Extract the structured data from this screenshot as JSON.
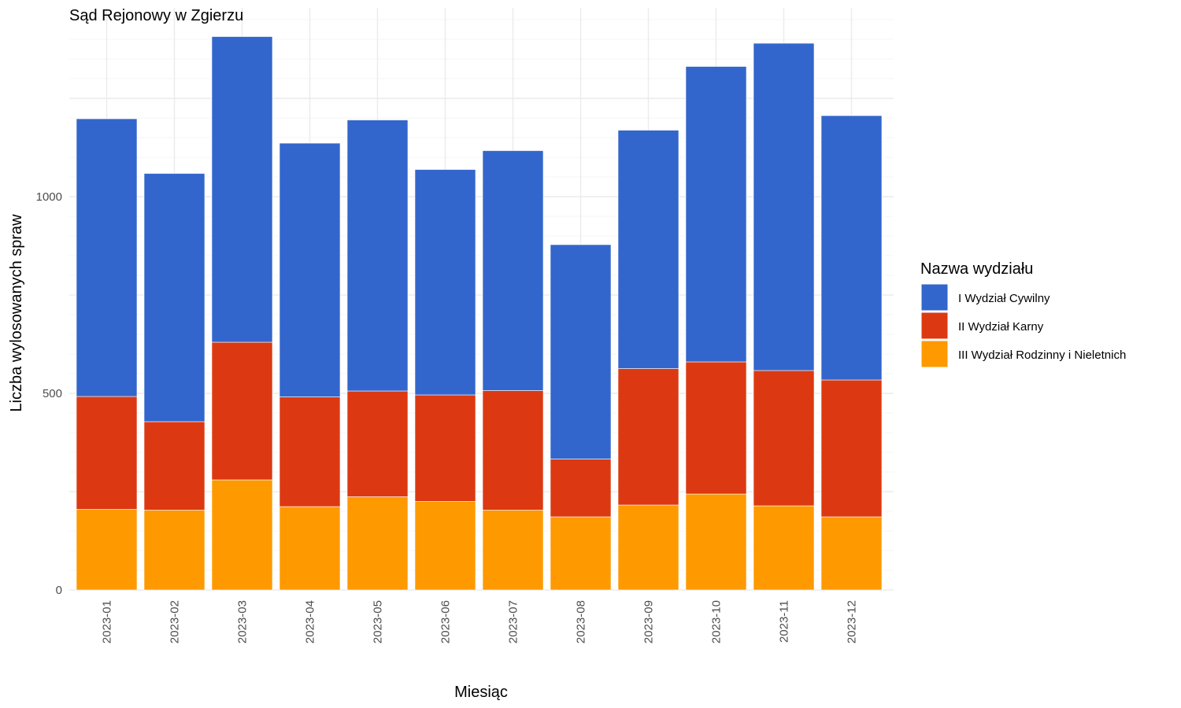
{
  "chart_data": {
    "type": "bar",
    "stacked": true,
    "title": "Sąd Rejonowy w Zgierzu",
    "xlabel": "Miesiąc",
    "ylabel": "Liczba wylosowanych spraw",
    "ylim": [
      0,
      1475
    ],
    "yticks": [
      0,
      500,
      1000
    ],
    "grid": true,
    "legend": {
      "title": "Nazwa wydziału",
      "placement": "right"
    },
    "categories": [
      "2023-01",
      "2023-02",
      "2023-03",
      "2023-04",
      "2023-05",
      "2023-06",
      "2023-07",
      "2023-08",
      "2023-09",
      "2023-10",
      "2023-11",
      "2023-12"
    ],
    "series": [
      {
        "name": "III Wydział Rodzinny i Nieletnich",
        "color": "#FF9900",
        "values": [
          205,
          203,
          280,
          212,
          237,
          225,
          203,
          186,
          216,
          244,
          214,
          186
        ]
      },
      {
        "name": "II Wydział Karny",
        "color": "#DC3912",
        "values": [
          287,
          225,
          350,
          279,
          269,
          271,
          304,
          147,
          347,
          336,
          344,
          348
        ]
      },
      {
        "name": "I Wydział Cywilny",
        "color": "#3366CC",
        "values": [
          706,
          631,
          777,
          645,
          689,
          573,
          610,
          545,
          606,
          751,
          832,
          672
        ]
      }
    ],
    "legend_order": [
      "I Wydział Cywilny",
      "II Wydział Karny",
      "III Wydział Rodzinny i Nieletnich"
    ]
  }
}
